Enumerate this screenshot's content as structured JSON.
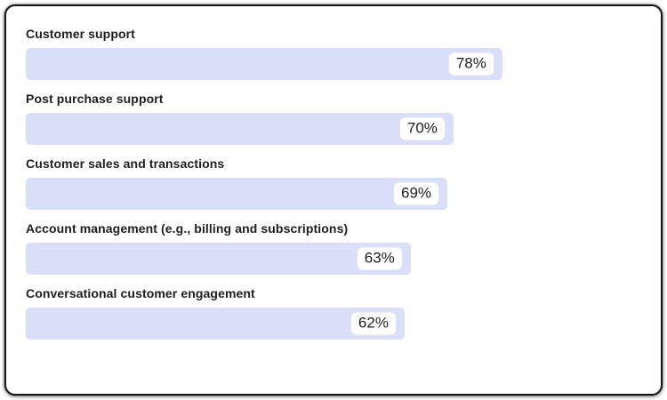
{
  "chart_data": {
    "type": "bar",
    "orientation": "horizontal",
    "title": "",
    "xlabel": "",
    "ylabel": "",
    "grid": false,
    "axes_visible": false,
    "xlim": [
      0,
      100
    ],
    "value_label_position": "inside-end",
    "categories": [
      "Customer support",
      "Post purchase support",
      "Customer sales and transactions",
      "Account management (e.g., billing and subscriptions)",
      "Conversational customer engagement"
    ],
    "values": [
      78,
      70,
      69,
      63,
      62
    ],
    "value_labels": [
      "78%",
      "70%",
      "69%",
      "63%",
      "62%"
    ]
  },
  "colors": {
    "bar_fill": "#d9def9",
    "badge_background": "#ffffff",
    "badge_border": "#e2e2ee",
    "text": "#1e1e1e",
    "card_background": "#ffffff",
    "card_border": "#161616"
  }
}
